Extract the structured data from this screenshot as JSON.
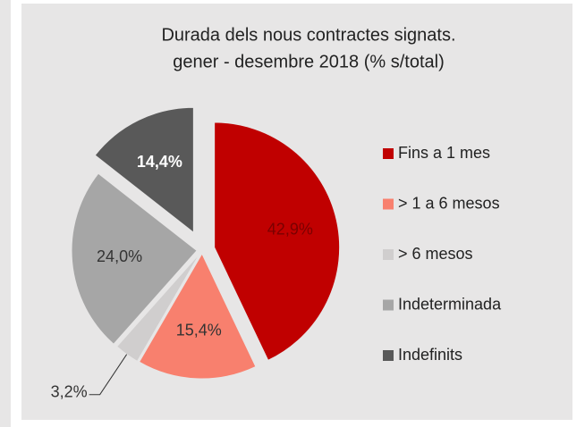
{
  "chart_data": {
    "type": "pie",
    "title": [
      "Durada dels nous contractes signats.",
      "gener - desembre 2018 (% s/total)"
    ],
    "categories": [
      "Fins a 1 mes",
      "> 1 a 6 mesos",
      "> 6 mesos",
      "Indeterminada",
      "Indefinits"
    ],
    "values": [
      42.9,
      15.4,
      3.2,
      24.0,
      14.4
    ],
    "value_labels": [
      "42,9%",
      "15,4%",
      "3,2%",
      "24,0%",
      "14,4%"
    ],
    "colors": [
      "#c00000",
      "#f8806e",
      "#d0cece",
      "#a6a6a6",
      "#595959"
    ],
    "legend": "right"
  }
}
